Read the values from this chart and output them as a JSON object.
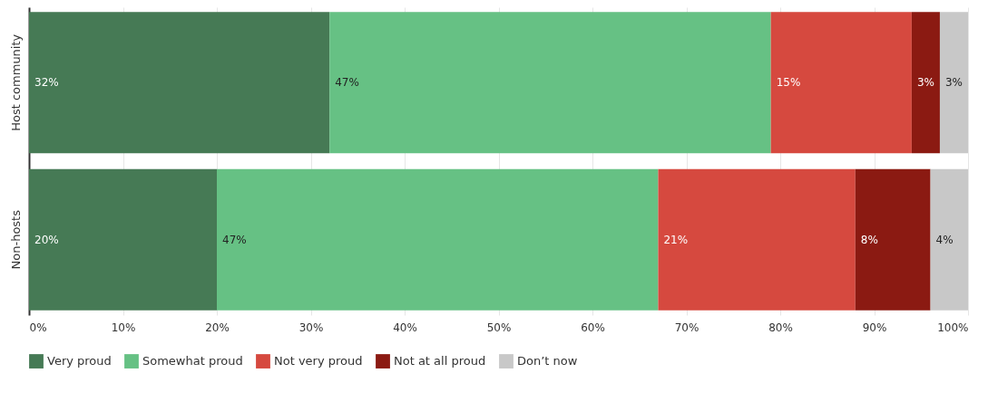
{
  "chart_data": {
    "type": "bar",
    "orientation": "horizontal",
    "stacked": true,
    "categories": [
      "Host community",
      "Non-hosts"
    ],
    "series": [
      {
        "name": "Very proud",
        "color": "#467a55",
        "values": [
          32,
          20
        ],
        "value_labels": [
          "32%",
          "20%"
        ]
      },
      {
        "name": "Somewhat proud",
        "color": "#66c184",
        "values": [
          47,
          47
        ],
        "value_labels": [
          "47%",
          "47%"
        ]
      },
      {
        "name": "Not very proud",
        "color": "#d6493f",
        "values": [
          15,
          21
        ],
        "value_labels": [
          "15%",
          "21%"
        ]
      },
      {
        "name": "Not at all proud",
        "color": "#8b1a12",
        "values": [
          3,
          8
        ],
        "value_labels": [
          "3%",
          "8%"
        ]
      },
      {
        "name": "Don’t now",
        "color": "#c8c8c8",
        "values": [
          3,
          4
        ],
        "value_labels": [
          "3%",
          "4%"
        ]
      }
    ],
    "xlim": [
      0,
      100
    ],
    "xticks": [
      {
        "value": 0,
        "label": "0%"
      },
      {
        "value": 10,
        "label": "10%"
      },
      {
        "value": 20,
        "label": "20%"
      },
      {
        "value": 30,
        "label": "30%"
      },
      {
        "value": 40,
        "label": "40%"
      },
      {
        "value": 50,
        "label": "50%"
      },
      {
        "value": 60,
        "label": "60%"
      },
      {
        "value": 70,
        "label": "70%"
      },
      {
        "value": 80,
        "label": "80%"
      },
      {
        "value": 90,
        "label": "90%"
      },
      {
        "value": 100,
        "label": "100%"
      }
    ],
    "grid": "x",
    "legend": "bottom"
  }
}
